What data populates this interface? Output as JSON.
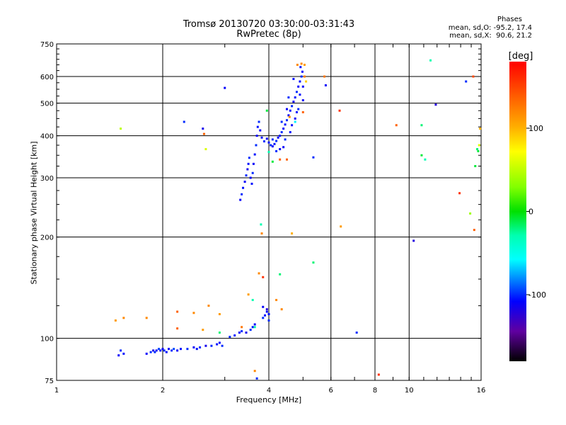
{
  "header": {
    "title": "Tromsø 20130720 03:30:00-03:31:43",
    "subtitle": "RwPretec (8p)",
    "stats_title": "Phases",
    "stats_o": "mean, sd,O: -95.2, 17.4",
    "stats_x": "mean, sd,X:  90.6, 21.2"
  },
  "colorbar": {
    "label": "[deg]",
    "range": [
      -180,
      180
    ],
    "ticks": [
      {
        "value": 100,
        "label": "100"
      },
      {
        "value": 0,
        "label": "0"
      },
      {
        "value": -100,
        "label": "-100"
      }
    ],
    "colors": {
      "top": "#ff0000",
      "orange": "#ff8000",
      "yellow": "#ffff00",
      "green": "#00e000",
      "cyan": "#00ffff",
      "blue": "#0000ff",
      "purple": "#6000a0",
      "bottom": "#000000"
    }
  },
  "chart_data": {
    "type": "scatter",
    "title": "Tromsø 20130720 03:30:00-03:31:43",
    "subtitle": "RwPretec (8p)",
    "xlabel": "Frequency [MHz]",
    "ylabel": "Stationary phase Virtual Height [km]",
    "xscale": "log",
    "yscale": "log",
    "xlim": [
      1,
      16
    ],
    "ylim": [
      75,
      750
    ],
    "grid": true,
    "xticks": [
      {
        "value": 1,
        "label": "1"
      },
      {
        "value": 2,
        "label": "2"
      },
      {
        "value": 4,
        "label": "4"
      },
      {
        "value": 6,
        "label": "6"
      },
      {
        "value": 8,
        "label": "8"
      },
      {
        "value": 10,
        "label": "10"
      },
      {
        "value": 16,
        "label": "16"
      }
    ],
    "yticks": [
      {
        "value": 75,
        "label": "75"
      },
      {
        "value": 100,
        "label": "100"
      },
      {
        "value": 200,
        "label": "200"
      },
      {
        "value": 300,
        "label": "300"
      },
      {
        "value": 400,
        "label": "400"
      },
      {
        "value": 500,
        "label": "500"
      },
      {
        "value": 600,
        "label": "600"
      },
      {
        "value": 750,
        "label": "750"
      }
    ],
    "points": [
      {
        "x": 1.5,
        "y": 89,
        "phase": -110
      },
      {
        "x": 1.52,
        "y": 92,
        "phase": -100
      },
      {
        "x": 1.55,
        "y": 90,
        "phase": -105
      },
      {
        "x": 1.8,
        "y": 90,
        "phase": -110
      },
      {
        "x": 1.85,
        "y": 91,
        "phase": -100
      },
      {
        "x": 1.88,
        "y": 92,
        "phase": -115
      },
      {
        "x": 1.9,
        "y": 91,
        "phase": -100
      },
      {
        "x": 1.92,
        "y": 92,
        "phase": -110
      },
      {
        "x": 1.95,
        "y": 93,
        "phase": -95
      },
      {
        "x": 1.97,
        "y": 92,
        "phase": -105
      },
      {
        "x": 2.0,
        "y": 93,
        "phase": -110
      },
      {
        "x": 2.02,
        "y": 92,
        "phase": -100
      },
      {
        "x": 2.05,
        "y": 91,
        "phase": -105
      },
      {
        "x": 2.08,
        "y": 93,
        "phase": -110
      },
      {
        "x": 2.12,
        "y": 92,
        "phase": -100
      },
      {
        "x": 2.15,
        "y": 93,
        "phase": -95
      },
      {
        "x": 2.2,
        "y": 92,
        "phase": -110
      },
      {
        "x": 2.25,
        "y": 93,
        "phase": -105
      },
      {
        "x": 2.35,
        "y": 93,
        "phase": -100
      },
      {
        "x": 2.45,
        "y": 94,
        "phase": -110
      },
      {
        "x": 2.5,
        "y": 93,
        "phase": -105
      },
      {
        "x": 2.55,
        "y": 94,
        "phase": -100
      },
      {
        "x": 2.65,
        "y": 95,
        "phase": -115
      },
      {
        "x": 2.75,
        "y": 95,
        "phase": -100
      },
      {
        "x": 2.85,
        "y": 96,
        "phase": -105
      },
      {
        "x": 2.9,
        "y": 97,
        "phase": -110
      },
      {
        "x": 3.1,
        "y": 101,
        "phase": -100
      },
      {
        "x": 3.2,
        "y": 102,
        "phase": -105
      },
      {
        "x": 3.3,
        "y": 104,
        "phase": -110
      },
      {
        "x": 3.35,
        "y": 105,
        "phase": -100
      },
      {
        "x": 3.45,
        "y": 104,
        "phase": -115
      },
      {
        "x": 3.55,
        "y": 106,
        "phase": -100
      },
      {
        "x": 3.6,
        "y": 108,
        "phase": -105
      },
      {
        "x": 3.65,
        "y": 110,
        "phase": -110
      },
      {
        "x": 3.85,
        "y": 115,
        "phase": -100
      },
      {
        "x": 3.9,
        "y": 117,
        "phase": -105
      },
      {
        "x": 3.95,
        "y": 120,
        "phase": -110
      },
      {
        "x": 4.0,
        "y": 113,
        "phase": -100
      },
      {
        "x": 4.0,
        "y": 118,
        "phase": -105
      },
      {
        "x": 2.9,
        "y": 104,
        "phase": -20
      },
      {
        "x": 3.65,
        "y": 108,
        "phase": -30
      },
      {
        "x": 3.85,
        "y": 124,
        "phase": -110
      },
      {
        "x": 3.95,
        "y": 122,
        "phase": -120
      },
      {
        "x": 3.32,
        "y": 258,
        "phase": -110
      },
      {
        "x": 3.35,
        "y": 268,
        "phase": -100
      },
      {
        "x": 3.38,
        "y": 280,
        "phase": -105
      },
      {
        "x": 3.42,
        "y": 292,
        "phase": -110
      },
      {
        "x": 3.45,
        "y": 305,
        "phase": -100
      },
      {
        "x": 3.48,
        "y": 318,
        "phase": -115
      },
      {
        "x": 3.5,
        "y": 330,
        "phase": -105
      },
      {
        "x": 3.52,
        "y": 344,
        "phase": -100
      },
      {
        "x": 3.55,
        "y": 300,
        "phase": -110
      },
      {
        "x": 3.58,
        "y": 288,
        "phase": -105
      },
      {
        "x": 3.6,
        "y": 310,
        "phase": -100
      },
      {
        "x": 3.62,
        "y": 330,
        "phase": -110
      },
      {
        "x": 3.65,
        "y": 352,
        "phase": -105
      },
      {
        "x": 3.68,
        "y": 375,
        "phase": -100
      },
      {
        "x": 3.7,
        "y": 400,
        "phase": -110
      },
      {
        "x": 3.72,
        "y": 425,
        "phase": -105
      },
      {
        "x": 3.75,
        "y": 440,
        "phase": -100
      },
      {
        "x": 3.78,
        "y": 415,
        "phase": -110
      },
      {
        "x": 3.82,
        "y": 395,
        "phase": -105
      },
      {
        "x": 3.88,
        "y": 385,
        "phase": -100
      },
      {
        "x": 3.95,
        "y": 392,
        "phase": -110
      },
      {
        "x": 4.0,
        "y": 382,
        "phase": -105
      },
      {
        "x": 4.05,
        "y": 375,
        "phase": -100
      },
      {
        "x": 4.1,
        "y": 372,
        "phase": -110
      },
      {
        "x": 4.15,
        "y": 378,
        "phase": -105
      },
      {
        "x": 4.2,
        "y": 386,
        "phase": -100
      },
      {
        "x": 4.25,
        "y": 395,
        "phase": -110
      },
      {
        "x": 4.3,
        "y": 400,
        "phase": -105
      },
      {
        "x": 4.35,
        "y": 410,
        "phase": -100
      },
      {
        "x": 4.4,
        "y": 420,
        "phase": -110
      },
      {
        "x": 4.45,
        "y": 432,
        "phase": -105
      },
      {
        "x": 4.5,
        "y": 445,
        "phase": -100
      },
      {
        "x": 4.55,
        "y": 460,
        "phase": -110
      },
      {
        "x": 4.6,
        "y": 475,
        "phase": -105
      },
      {
        "x": 4.65,
        "y": 490,
        "phase": -100
      },
      {
        "x": 4.7,
        "y": 505,
        "phase": -110
      },
      {
        "x": 4.75,
        "y": 520,
        "phase": -105
      },
      {
        "x": 4.8,
        "y": 540,
        "phase": -100
      },
      {
        "x": 4.85,
        "y": 560,
        "phase": -110
      },
      {
        "x": 4.9,
        "y": 580,
        "phase": -105
      },
      {
        "x": 4.95,
        "y": 600,
        "phase": -100
      },
      {
        "x": 4.98,
        "y": 620,
        "phase": -110
      },
      {
        "x": 4.92,
        "y": 640,
        "phase": -105
      },
      {
        "x": 4.3,
        "y": 365,
        "phase": -110
      },
      {
        "x": 4.45,
        "y": 390,
        "phase": -100
      },
      {
        "x": 4.6,
        "y": 410,
        "phase": -105
      },
      {
        "x": 4.75,
        "y": 450,
        "phase": -110
      },
      {
        "x": 4.85,
        "y": 480,
        "phase": -100
      },
      {
        "x": 4.9,
        "y": 530,
        "phase": -105
      },
      {
        "x": 5.0,
        "y": 560,
        "phase": -110
      },
      {
        "x": 4.55,
        "y": 520,
        "phase": -100
      },
      {
        "x": 4.7,
        "y": 590,
        "phase": -105
      },
      {
        "x": 4.2,
        "y": 360,
        "phase": -100
      },
      {
        "x": 4.4,
        "y": 370,
        "phase": -110
      },
      {
        "x": 4.1,
        "y": 390,
        "phase": -100
      },
      {
        "x": 4.65,
        "y": 430,
        "phase": -105
      },
      {
        "x": 4.5,
        "y": 480,
        "phase": -110
      },
      {
        "x": 4.8,
        "y": 470,
        "phase": -105
      },
      {
        "x": 4.35,
        "y": 440,
        "phase": -100
      },
      {
        "x": 5.0,
        "y": 510,
        "phase": -110
      },
      {
        "x": 4.58,
        "y": 455,
        "phase": 120
      },
      {
        "x": 4.75,
        "y": 440,
        "phase": -60
      },
      {
        "x": 4.95,
        "y": 655,
        "phase": 120
      },
      {
        "x": 5.05,
        "y": 600,
        "phase": 125
      },
      {
        "x": 5.1,
        "y": 580,
        "phase": 90
      },
      {
        "x": 4.82,
        "y": 650,
        "phase": 120
      },
      {
        "x": 5.05,
        "y": 650,
        "phase": 110
      },
      {
        "x": 5.0,
        "y": 470,
        "phase": 140
      },
      {
        "x": 1.52,
        "y": 420,
        "phase": 50
      },
      {
        "x": 2.3,
        "y": 440,
        "phase": -100
      },
      {
        "x": 2.6,
        "y": 420,
        "phase": -115
      },
      {
        "x": 2.62,
        "y": 405,
        "phase": 140
      },
      {
        "x": 2.65,
        "y": 365,
        "phase": 60
      },
      {
        "x": 3.0,
        "y": 555,
        "phase": -110
      },
      {
        "x": 3.95,
        "y": 475,
        "phase": -10
      },
      {
        "x": 4.1,
        "y": 335,
        "phase": -10
      },
      {
        "x": 4.0,
        "y": 358,
        "phase": -30
      },
      {
        "x": 4.3,
        "y": 340,
        "phase": 140
      },
      {
        "x": 4.5,
        "y": 340,
        "phase": 140
      },
      {
        "x": 5.35,
        "y": 345,
        "phase": -100
      },
      {
        "x": 5.75,
        "y": 600,
        "phase": 130
      },
      {
        "x": 5.8,
        "y": 565,
        "phase": -110
      },
      {
        "x": 6.35,
        "y": 475,
        "phase": 160
      },
      {
        "x": 3.8,
        "y": 218,
        "phase": -30
      },
      {
        "x": 3.82,
        "y": 205,
        "phase": 120
      },
      {
        "x": 4.65,
        "y": 205,
        "phase": 100
      },
      {
        "x": 6.4,
        "y": 215,
        "phase": 110
      },
      {
        "x": 5.35,
        "y": 168,
        "phase": -20
      },
      {
        "x": 1.47,
        "y": 113,
        "phase": 110
      },
      {
        "x": 1.55,
        "y": 115,
        "phase": 120
      },
      {
        "x": 1.8,
        "y": 115,
        "phase": 120
      },
      {
        "x": 2.2,
        "y": 120,
        "phase": 140
      },
      {
        "x": 2.2,
        "y": 107,
        "phase": 140
      },
      {
        "x": 2.45,
        "y": 119,
        "phase": 120
      },
      {
        "x": 2.6,
        "y": 106,
        "phase": 110
      },
      {
        "x": 2.7,
        "y": 125,
        "phase": 120
      },
      {
        "x": 2.9,
        "y": 118,
        "phase": 110
      },
      {
        "x": 3.35,
        "y": 108,
        "phase": 130
      },
      {
        "x": 3.5,
        "y": 135,
        "phase": 110
      },
      {
        "x": 3.6,
        "y": 130,
        "phase": -30
      },
      {
        "x": 3.75,
        "y": 156,
        "phase": 120
      },
      {
        "x": 3.85,
        "y": 152,
        "phase": 160
      },
      {
        "x": 4.2,
        "y": 130,
        "phase": 120
      },
      {
        "x": 4.3,
        "y": 155,
        "phase": -20
      },
      {
        "x": 4.35,
        "y": 122,
        "phase": 120
      },
      {
        "x": 3.65,
        "y": 80,
        "phase": 120
      },
      {
        "x": 3.7,
        "y": 76,
        "phase": -100
      },
      {
        "x": 2.95,
        "y": 95,
        "phase": -100
      },
      {
        "x": 7.1,
        "y": 104,
        "phase": -100
      },
      {
        "x": 8.2,
        "y": 78,
        "phase": 160
      },
      {
        "x": 9.2,
        "y": 430,
        "phase": 140
      },
      {
        "x": 10.3,
        "y": 195,
        "phase": -120
      },
      {
        "x": 10.85,
        "y": 430,
        "phase": -20
      },
      {
        "x": 10.85,
        "y": 350,
        "phase": -10
      },
      {
        "x": 11.1,
        "y": 340,
        "phase": -30
      },
      {
        "x": 11.5,
        "y": 670,
        "phase": -30
      },
      {
        "x": 11.9,
        "y": 495,
        "phase": -120
      },
      {
        "x": 13.9,
        "y": 270,
        "phase": 160
      },
      {
        "x": 14.5,
        "y": 580,
        "phase": -100
      },
      {
        "x": 14.9,
        "y": 235,
        "phase": 40
      },
      {
        "x": 15.2,
        "y": 600,
        "phase": 150
      },
      {
        "x": 15.3,
        "y": 210,
        "phase": 140
      },
      {
        "x": 15.4,
        "y": 325,
        "phase": -10
      },
      {
        "x": 15.6,
        "y": 365,
        "phase": -20
      },
      {
        "x": 15.8,
        "y": 375,
        "phase": 60
      },
      {
        "x": 15.9,
        "y": 420,
        "phase": 100
      },
      {
        "x": 15.7,
        "y": 360,
        "phase": -10
      }
    ]
  }
}
